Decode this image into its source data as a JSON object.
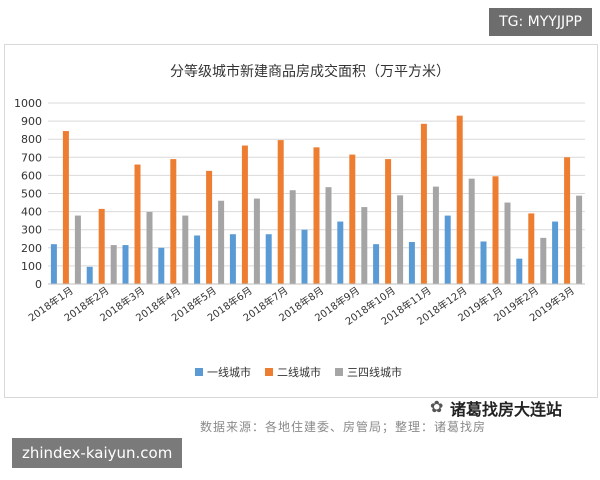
{
  "overlays": {
    "tag": "TG: MYYJJPP",
    "url": "zhindex-kaiyun.com",
    "watermark": "诸葛找房大连站"
  },
  "source_note": "数据来源：各地住建委、房管局；整理：诸葛找房",
  "colors": {
    "tier1": "#5b9bd5",
    "tier2": "#ed7d31",
    "tier34": "#a5a5a5",
    "grid": "#d9d9d9",
    "axis": "#bfbfbf",
    "text": "#333333"
  },
  "chart_data": {
    "type": "bar",
    "title": "分等级城市新建商品房成交面积（万平方米）",
    "xlabel": "",
    "ylabel": "",
    "ylim": [
      0,
      1000
    ],
    "yticks": [
      0,
      100,
      200,
      300,
      400,
      500,
      600,
      700,
      800,
      900,
      1000
    ],
    "grid": true,
    "legend_position": "bottom",
    "categories": [
      "2018年1月",
      "2018年2月",
      "2018年3月",
      "2018年4月",
      "2018年5月",
      "2018年6月",
      "2018年7月",
      "2018年8月",
      "2018年9月",
      "2018年10月",
      "2018年11月",
      "2018年12月",
      "2019年1月",
      "2019年2月",
      "2019年3月"
    ],
    "series": [
      {
        "name": "一线城市",
        "color_key": "tier1",
        "values": [
          220,
          95,
          215,
          200,
          268,
          275,
          275,
          300,
          345,
          220,
          232,
          378,
          235,
          140,
          345
        ]
      },
      {
        "name": "二线城市",
        "color_key": "tier2",
        "values": [
          845,
          415,
          660,
          690,
          625,
          765,
          795,
          755,
          715,
          690,
          885,
          930,
          595,
          390,
          700
        ]
      },
      {
        "name": "三四线城市",
        "color_key": "tier34",
        "values": [
          378,
          215,
          398,
          378,
          460,
          472,
          518,
          535,
          425,
          490,
          538,
          582,
          450,
          255,
          488
        ]
      }
    ]
  }
}
